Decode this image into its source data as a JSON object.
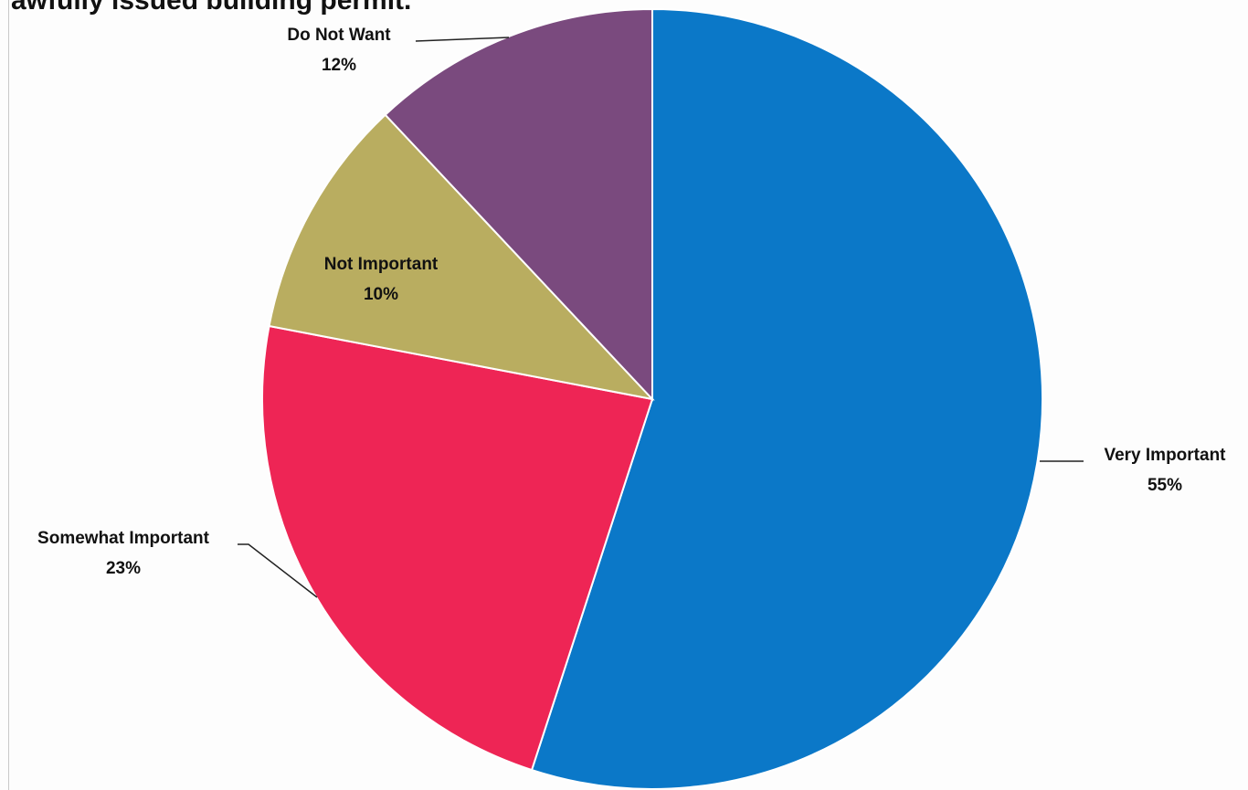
{
  "chart_data": {
    "type": "pie",
    "title": "awfully issued building permit.",
    "slices": [
      {
        "label": "Very Important",
        "value": 55,
        "value_label": "55%",
        "color": "#0b78c8"
      },
      {
        "label": "Somewhat Important",
        "value": 23,
        "value_label": "23%",
        "color": "#ee2555"
      },
      {
        "label": "Not Important",
        "value": 10,
        "value_label": "10%",
        "color": "#b9ad60"
      },
      {
        "label": "Do Not Want",
        "value": 12,
        "value_label": "12%",
        "color": "#7a4a7e"
      }
    ],
    "start_angle": "12 o'clock",
    "direction": "clockwise",
    "legend": "none",
    "data_labels": "category name and percentage"
  }
}
